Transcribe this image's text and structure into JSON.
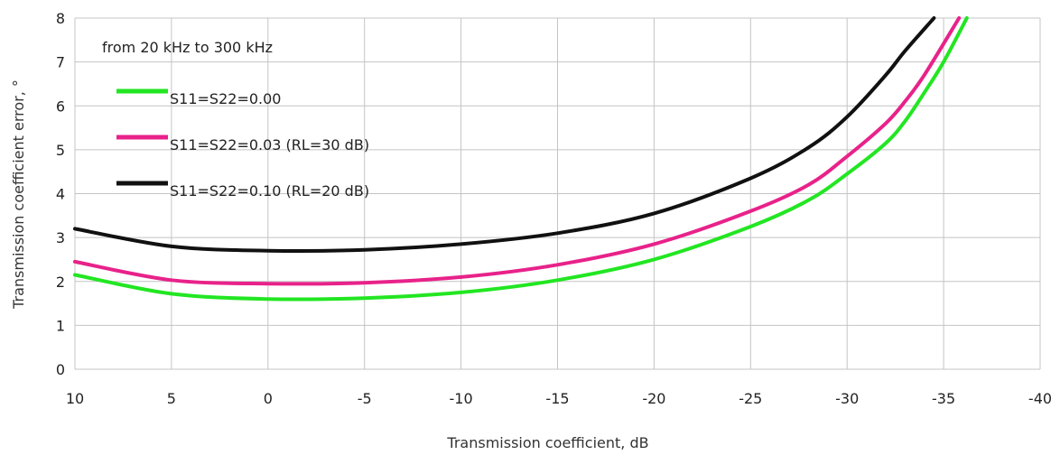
{
  "chart_data": {
    "type": "line",
    "annotation": "from 20 kHz to 300 kHz",
    "xlabel": "Transmission coefficient, dB",
    "ylabel": "Transmission coefficient error, °",
    "xlim": [
      10,
      -40
    ],
    "ylim": [
      0,
      8
    ],
    "x_ticks": [
      10,
      5,
      0,
      -5,
      -10,
      -15,
      -20,
      -25,
      -30,
      -35,
      -40
    ],
    "x_tick_labels": [
      "10",
      "5",
      "0",
      "-5",
      "-10",
      "-15",
      "-20",
      "-25",
      "-30",
      "-35",
      "-40"
    ],
    "y_ticks": [
      0,
      1,
      2,
      3,
      4,
      5,
      6,
      7,
      8
    ],
    "y_tick_labels": [
      "0",
      "1",
      "2",
      "3",
      "4",
      "5",
      "6",
      "7",
      "8"
    ],
    "grid": true,
    "legend_position": "top-left",
    "series": [
      {
        "name": "S11=S22=0.00",
        "color": "#22e622",
        "x": [
          10,
          5,
          0,
          -5,
          -10,
          -15,
          -20,
          -25,
          -28,
          -30,
          -32,
          -33,
          -34,
          -35,
          -36.2
        ],
        "y": [
          2.15,
          1.72,
          1.6,
          1.62,
          1.75,
          2.03,
          2.5,
          3.25,
          3.85,
          4.45,
          5.15,
          5.65,
          6.3,
          7.0,
          8.0
        ]
      },
      {
        "name": "S11=S22=0.03 (RL=30 dB)",
        "color": "#e8228a",
        "x": [
          10,
          5,
          0,
          -5,
          -10,
          -15,
          -20,
          -25,
          -28,
          -30,
          -32,
          -33,
          -34,
          -35.8
        ],
        "y": [
          2.45,
          2.03,
          1.95,
          1.97,
          2.1,
          2.38,
          2.85,
          3.6,
          4.2,
          4.85,
          5.6,
          6.1,
          6.7,
          8.0
        ]
      },
      {
        "name": "S11=S22=0.10 (RL=20 dB)",
        "color": "#111111",
        "x": [
          10,
          5,
          0,
          -5,
          -10,
          -15,
          -20,
          -25,
          -28,
          -30,
          -32,
          -33,
          -34.5
        ],
        "y": [
          3.2,
          2.8,
          2.7,
          2.72,
          2.85,
          3.1,
          3.55,
          4.35,
          5.05,
          5.75,
          6.7,
          7.25,
          8.0
        ]
      }
    ]
  }
}
